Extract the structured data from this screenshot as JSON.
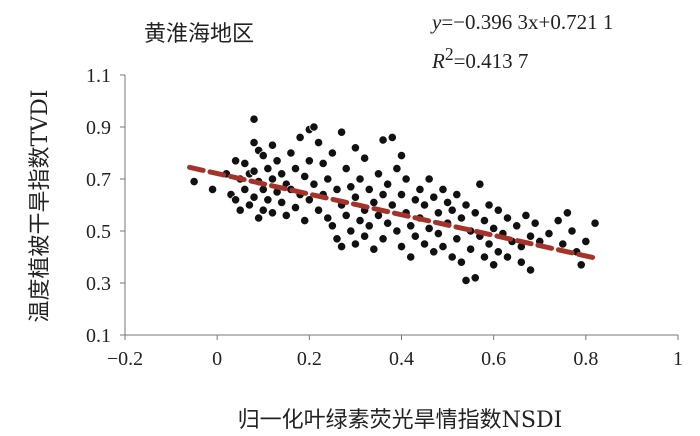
{
  "chart_data": {
    "type": "scatter",
    "title": "黄淮海地区",
    "equation": {
      "y_label": "y",
      "equation_rest": "=−0.396 3x+0.721 1",
      "r2_label": "R",
      "r2_sup": "2",
      "r2_value": "=0.413 7"
    },
    "xlabel": "归一化叶绿素荧光旱情指数NSDI",
    "ylabel": "温度植被干旱指数TVDI",
    "xlim": [
      -0.2,
      1.0
    ],
    "ylim": [
      0.1,
      1.1
    ],
    "xticks": [
      "−0.2",
      "0",
      "0.2",
      "0.4",
      "0.6",
      "0.8",
      "1"
    ],
    "xtick_values": [
      -0.2,
      0,
      0.2,
      0.4,
      0.6,
      0.8,
      1.0
    ],
    "yticks": [
      "0.1",
      "0.3",
      "0.5",
      "0.7",
      "0.9",
      "1.1"
    ],
    "ytick_values": [
      0.1,
      0.3,
      0.5,
      0.7,
      0.9,
      1.1
    ],
    "grid": false,
    "trendline": {
      "slope": -0.3963,
      "intercept": 0.7211,
      "x_range": [
        -0.06,
        0.82
      ],
      "color": "#a63329",
      "style": "dashed"
    },
    "marker_color": "#111111",
    "points": [
      [
        -0.05,
        0.69
      ],
      [
        -0.01,
        0.66
      ],
      [
        0.02,
        0.72
      ],
      [
        0.03,
        0.64
      ],
      [
        0.04,
        0.77
      ],
      [
        0.04,
        0.62
      ],
      [
        0.05,
        0.7
      ],
      [
        0.05,
        0.58
      ],
      [
        0.06,
        0.76
      ],
      [
        0.06,
        0.66
      ],
      [
        0.07,
        0.72
      ],
      [
        0.07,
        0.6
      ],
      [
        0.08,
        0.93
      ],
      [
        0.08,
        0.84
      ],
      [
        0.08,
        0.73
      ],
      [
        0.08,
        0.63
      ],
      [
        0.09,
        0.81
      ],
      [
        0.09,
        0.69
      ],
      [
        0.09,
        0.55
      ],
      [
        0.1,
        0.79
      ],
      [
        0.1,
        0.66
      ],
      [
        0.1,
        0.58
      ],
      [
        0.11,
        0.74
      ],
      [
        0.11,
        0.62
      ],
      [
        0.12,
        0.83
      ],
      [
        0.12,
        0.7
      ],
      [
        0.12,
        0.57
      ],
      [
        0.13,
        0.77
      ],
      [
        0.13,
        0.65
      ],
      [
        0.14,
        0.72
      ],
      [
        0.14,
        0.61
      ],
      [
        0.15,
        0.68
      ],
      [
        0.15,
        0.56
      ],
      [
        0.16,
        0.8
      ],
      [
        0.16,
        0.66
      ],
      [
        0.17,
        0.74
      ],
      [
        0.17,
        0.59
      ],
      [
        0.18,
        0.86
      ],
      [
        0.18,
        0.64
      ],
      [
        0.19,
        0.71
      ],
      [
        0.19,
        0.54
      ],
      [
        0.2,
        0.89
      ],
      [
        0.2,
        0.77
      ],
      [
        0.2,
        0.62
      ],
      [
        0.21,
        0.9
      ],
      [
        0.21,
        0.68
      ],
      [
        0.22,
        0.84
      ],
      [
        0.22,
        0.58
      ],
      [
        0.23,
        0.76
      ],
      [
        0.23,
        0.64
      ],
      [
        0.24,
        0.7
      ],
      [
        0.24,
        0.55
      ],
      [
        0.25,
        0.8
      ],
      [
        0.25,
        0.52
      ],
      [
        0.26,
        0.66
      ],
      [
        0.26,
        0.47
      ],
      [
        0.27,
        0.88
      ],
      [
        0.27,
        0.6
      ],
      [
        0.27,
        0.44
      ],
      [
        0.28,
        0.74
      ],
      [
        0.28,
        0.56
      ],
      [
        0.29,
        0.67
      ],
      [
        0.29,
        0.5
      ],
      [
        0.3,
        0.82
      ],
      [
        0.3,
        0.63
      ],
      [
        0.3,
        0.45
      ],
      [
        0.31,
        0.7
      ],
      [
        0.31,
        0.54
      ],
      [
        0.32,
        0.78
      ],
      [
        0.32,
        0.58
      ],
      [
        0.32,
        0.48
      ],
      [
        0.33,
        0.66
      ],
      [
        0.33,
        0.52
      ],
      [
        0.34,
        0.61
      ],
      [
        0.34,
        0.43
      ],
      [
        0.35,
        0.72
      ],
      [
        0.35,
        0.56
      ],
      [
        0.36,
        0.85
      ],
      [
        0.36,
        0.64
      ],
      [
        0.36,
        0.47
      ],
      [
        0.37,
        0.68
      ],
      [
        0.37,
        0.53
      ],
      [
        0.38,
        0.86
      ],
      [
        0.38,
        0.6
      ],
      [
        0.39,
        0.74
      ],
      [
        0.39,
        0.5
      ],
      [
        0.4,
        0.79
      ],
      [
        0.4,
        0.64
      ],
      [
        0.4,
        0.44
      ],
      [
        0.41,
        0.57
      ],
      [
        0.41,
        0.7
      ],
      [
        0.42,
        0.52
      ],
      [
        0.42,
        0.4
      ],
      [
        0.43,
        0.62
      ],
      [
        0.43,
        0.48
      ],
      [
        0.44,
        0.66
      ],
      [
        0.44,
        0.55
      ],
      [
        0.45,
        0.6
      ],
      [
        0.45,
        0.45
      ],
      [
        0.46,
        0.7
      ],
      [
        0.46,
        0.51
      ],
      [
        0.47,
        0.63
      ],
      [
        0.47,
        0.42
      ],
      [
        0.48,
        0.57
      ],
      [
        0.48,
        0.49
      ],
      [
        0.49,
        0.66
      ],
      [
        0.49,
        0.44
      ],
      [
        0.5,
        0.61
      ],
      [
        0.5,
        0.53
      ],
      [
        0.51,
        0.58
      ],
      [
        0.51,
        0.4
      ],
      [
        0.52,
        0.64
      ],
      [
        0.52,
        0.47
      ],
      [
        0.53,
        0.55
      ],
      [
        0.53,
        0.38
      ],
      [
        0.54,
        0.6
      ],
      [
        0.54,
        0.31
      ],
      [
        0.55,
        0.5
      ],
      [
        0.55,
        0.43
      ],
      [
        0.56,
        0.57
      ],
      [
        0.56,
        0.32
      ],
      [
        0.57,
        0.48
      ],
      [
        0.57,
        0.68
      ],
      [
        0.58,
        0.54
      ],
      [
        0.58,
        0.4
      ],
      [
        0.59,
        0.6
      ],
      [
        0.59,
        0.45
      ],
      [
        0.6,
        0.51
      ],
      [
        0.6,
        0.37
      ],
      [
        0.61,
        0.58
      ],
      [
        0.61,
        0.42
      ],
      [
        0.62,
        0.49
      ],
      [
        0.63,
        0.55
      ],
      [
        0.63,
        0.4
      ],
      [
        0.64,
        0.46
      ],
      [
        0.65,
        0.52
      ],
      [
        0.66,
        0.44
      ],
      [
        0.66,
        0.38
      ],
      [
        0.67,
        0.56
      ],
      [
        0.68,
        0.48
      ],
      [
        0.68,
        0.35
      ],
      [
        0.69,
        0.53
      ],
      [
        0.7,
        0.46
      ],
      [
        0.72,
        0.49
      ],
      [
        0.74,
        0.54
      ],
      [
        0.75,
        0.45
      ],
      [
        0.76,
        0.57
      ],
      [
        0.77,
        0.5
      ],
      [
        0.78,
        0.42
      ],
      [
        0.79,
        0.37
      ],
      [
        0.8,
        0.46
      ],
      [
        0.82,
        0.53
      ]
    ]
  }
}
